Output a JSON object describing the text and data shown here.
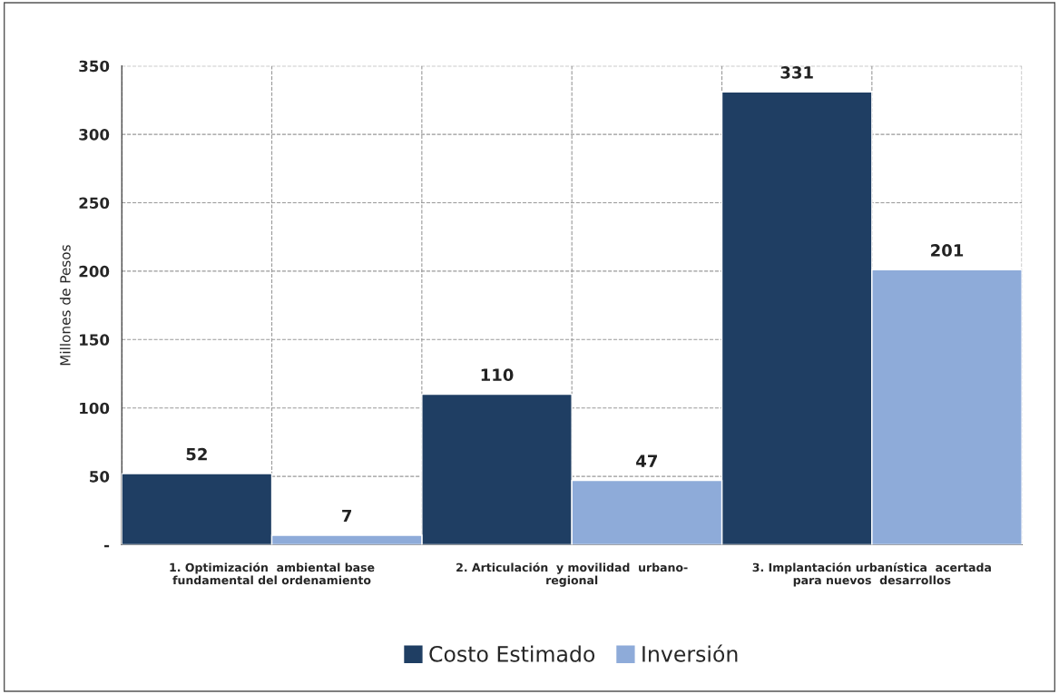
{
  "chart_data": {
    "type": "bar",
    "categories": [
      "1. Optimización  ambiental base\nfundamental del ordenamiento",
      "2. Articulación  y movilidad  urbano-\nregional",
      "3. Implantación urbanística  acertada\npara nuevos  desarrollos"
    ],
    "series": [
      {
        "name": "Costo Estimado",
        "color": "#1f3e63",
        "values": [
          52,
          110,
          331
        ]
      },
      {
        "name": "Inversión",
        "color": "#8eabd9",
        "values": [
          7,
          47,
          201
        ]
      }
    ],
    "ylabel": "Millones de Pesos",
    "ylim": [
      0,
      350
    ],
    "yticks": [
      {
        "value": 0,
        "label": "-"
      },
      50,
      100,
      150,
      200,
      250,
      300,
      350
    ],
    "data_labels": true,
    "grid": true,
    "legend": "bottom"
  }
}
